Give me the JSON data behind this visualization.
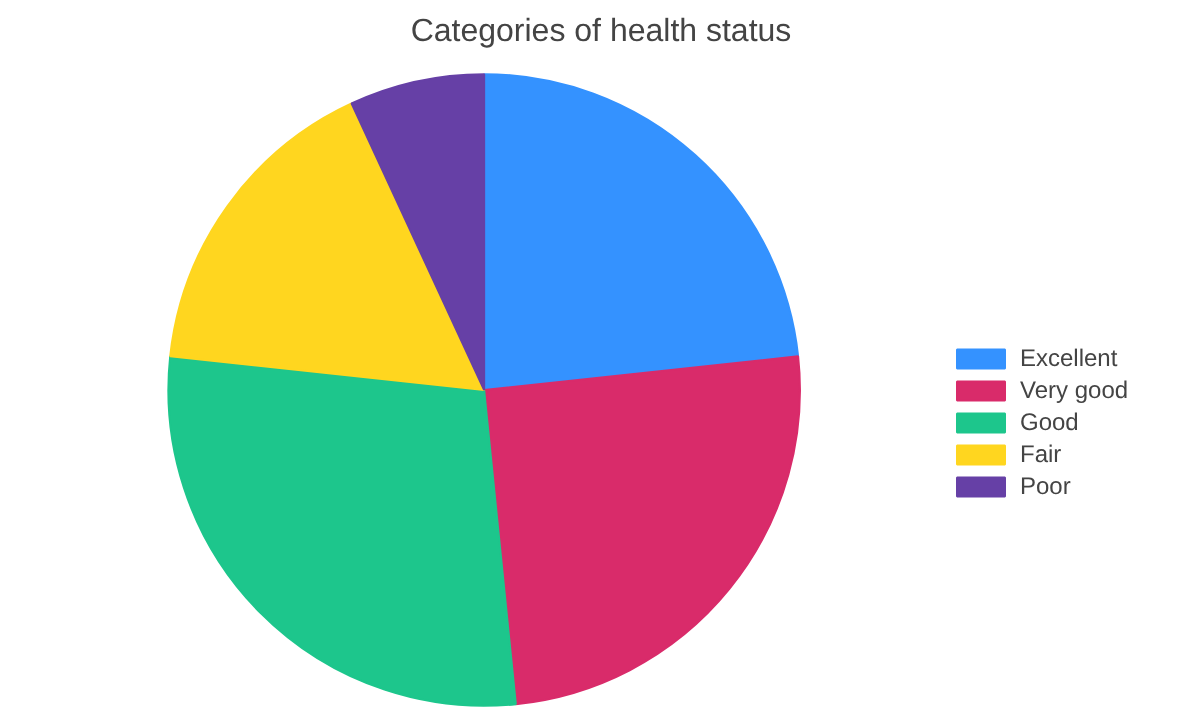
{
  "chart_data": {
    "type": "pie",
    "title": "Categories of health status",
    "categories": [
      "Excellent",
      "Very good",
      "Good",
      "Fair",
      "Poor"
    ],
    "values": [
      23.3,
      25.1,
      28.3,
      16.4,
      6.9
    ],
    "colors": [
      "#3492ff",
      "#d92b6a",
      "#1dc68c",
      "#ffd61f",
      "#6640a6"
    ],
    "legend": "right"
  }
}
